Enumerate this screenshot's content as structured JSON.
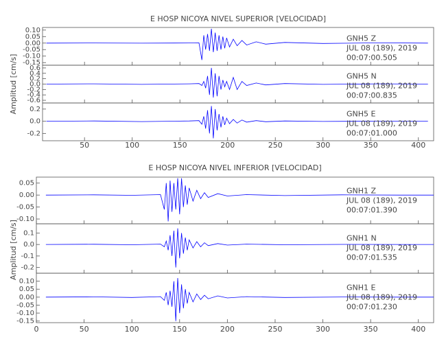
{
  "chart_data": [
    {
      "type": "line",
      "title": "E HOSP NICOYA NIVEL SUPERIOR [VELOCIDAD]",
      "y_label": "Amplitud [cm/s]",
      "color": "#0000ff",
      "xlim": [
        6,
        416
      ],
      "xticks": [
        50,
        100,
        150,
        200,
        250,
        300,
        350,
        400
      ],
      "panels": [
        {
          "station": "GNH5   Z",
          "date": "JUL 08 (189), 2019",
          "time": "00:07:00.505",
          "ylim": [
            -0.17,
            0.12
          ],
          "yticks": [
            {
              "value": -0.15,
              "label": "-0.15"
            },
            {
              "value": -0.1,
              "label": "-0.10"
            },
            {
              "value": -0.05,
              "label": "-0.05"
            },
            {
              "value": 0,
              "label": "0.00"
            },
            {
              "value": 0.05,
              "label": "0.05"
            },
            {
              "value": 0.1,
              "label": "0.10"
            }
          ],
          "x": [
            10,
            60,
            110,
            160,
            170,
            173,
            175,
            177,
            179,
            181,
            183,
            185,
            187,
            189,
            191,
            193,
            195,
            197,
            199,
            202,
            206,
            210,
            215,
            220,
            230,
            240,
            260,
            300,
            360,
            410
          ],
          "values": [
            0,
            0.001,
            -0.001,
            0.001,
            0.002,
            -0.13,
            0.06,
            -0.05,
            0.07,
            -0.06,
            0.11,
            -0.07,
            0.08,
            -0.06,
            0.06,
            -0.05,
            0.05,
            -0.04,
            0.04,
            -0.03,
            0.03,
            -0.02,
            0.02,
            -0.015,
            0.01,
            -0.008,
            0.005,
            -0.003,
            0.002,
            0
          ]
        },
        {
          "station": "GNH5   N",
          "date": "JUL 08 (189), 2019",
          "time": "00:07:00.835",
          "ylim": [
            -0.7,
            0.7
          ],
          "yticks": [
            -0.6,
            -0.4,
            -0.2,
            {
              "value": 0,
              "label": "0.0"
            },
            0.2,
            0.4,
            0.6
          ],
          "x": [
            10,
            60,
            110,
            160,
            170,
            173,
            175,
            177,
            179,
            181,
            183,
            185,
            187,
            189,
            191,
            193,
            195,
            197,
            199,
            202,
            206,
            210,
            215,
            220,
            230,
            240,
            260,
            300,
            360,
            410
          ],
          "values": [
            0,
            0.01,
            -0.01,
            0.01,
            0.02,
            -0.05,
            0.1,
            -0.15,
            0.3,
            -0.4,
            0.6,
            -0.5,
            0.4,
            -0.45,
            0.3,
            -0.2,
            0.15,
            -0.1,
            0.1,
            -0.2,
            0.25,
            -0.2,
            0.1,
            -0.05,
            0.04,
            -0.03,
            0.02,
            -0.01,
            0.01,
            0
          ]
        },
        {
          "station": "GNH5   E",
          "date": "JUL 08 (189), 2019",
          "time": "00:07:01.000",
          "ylim": [
            -0.32,
            0.3
          ],
          "yticks": [
            -0.2,
            {
              "value": 0,
              "label": "0.0"
            },
            0.2
          ],
          "x": [
            10,
            60,
            110,
            160,
            170,
            173,
            175,
            177,
            179,
            181,
            183,
            185,
            187,
            189,
            191,
            193,
            195,
            197,
            199,
            202,
            206,
            210,
            215,
            220,
            230,
            240,
            260,
            300,
            360,
            410
          ],
          "values": [
            0,
            0.005,
            -0.005,
            0.005,
            0.01,
            -0.05,
            0.08,
            -0.12,
            0.18,
            -0.2,
            0.25,
            -0.28,
            0.2,
            -0.15,
            0.12,
            -0.1,
            0.08,
            -0.06,
            0.05,
            -0.04,
            0.03,
            -0.03,
            0.02,
            -0.015,
            0.01,
            -0.008,
            0.005,
            -0.003,
            0.002,
            0
          ]
        }
      ]
    },
    {
      "type": "line",
      "title": "E HOSP NICOYA NIVEL INFERIOR [VELOCIDAD]",
      "y_label": "Amplitud [cm/s]",
      "color": "#0000ff",
      "xlim": [
        0,
        416
      ],
      "xticks": [
        0,
        50,
        100,
        150,
        200,
        250,
        300,
        350,
        400
      ],
      "panels": [
        {
          "station": "GNH1   Z",
          "date": "JUL 08 (189), 2019",
          "time": "00:07:01.390",
          "ylim": [
            -0.12,
            0.075
          ],
          "yticks": [
            {
              "value": -0.1,
              "label": "-0.10"
            },
            {
              "value": -0.05,
              "label": "-0.05"
            },
            {
              "value": 0,
              "label": "0.00"
            },
            {
              "value": 0.05,
              "label": "0.05"
            }
          ],
          "x": [
            10,
            60,
            100,
            130,
            134,
            136,
            138,
            140,
            142,
            144,
            146,
            148,
            150,
            152,
            154,
            156,
            158,
            160,
            164,
            168,
            172,
            176,
            180,
            190,
            200,
            220,
            260,
            320,
            380,
            416
          ],
          "values": [
            0,
            0.001,
            -0.001,
            0.002,
            -0.06,
            0.05,
            -0.11,
            0.06,
            -0.07,
            0.05,
            -0.06,
            0.07,
            -0.08,
            0.07,
            -0.05,
            0.04,
            -0.04,
            0.03,
            -0.025,
            0.02,
            -0.015,
            0.01,
            -0.01,
            0.006,
            -0.004,
            0.002,
            -0.002,
            0.001,
            0,
            0
          ]
        },
        {
          "station": "GNH1   N",
          "date": "JUL 08 (189), 2019",
          "time": "00:07:01.535",
          "ylim": [
            -0.25,
            0.18
          ],
          "yticks": [
            -0.2,
            -0.1,
            {
              "value": 0,
              "label": "0.0"
            },
            0.1
          ],
          "x": [
            10,
            60,
            100,
            130,
            134,
            136,
            138,
            140,
            142,
            144,
            146,
            148,
            150,
            152,
            154,
            156,
            158,
            160,
            164,
            168,
            172,
            176,
            180,
            190,
            200,
            220,
            260,
            320,
            380,
            416
          ],
          "values": [
            0,
            0.002,
            -0.002,
            0.003,
            -0.02,
            0.03,
            -0.05,
            0.08,
            -0.1,
            0.12,
            -0.2,
            0.14,
            -0.12,
            0.1,
            -0.08,
            0.06,
            -0.05,
            0.04,
            -0.03,
            0.025,
            -0.02,
            0.015,
            -0.01,
            0.008,
            -0.005,
            0.003,
            -0.002,
            0.001,
            0,
            0
          ]
        },
        {
          "station": "GNH1   E",
          "date": "JUL 08 (189), 2019",
          "time": "00:07:01.230",
          "ylim": [
            -0.16,
            0.15
          ],
          "yticks": [
            {
              "value": -0.15,
              "label": "-0.15"
            },
            {
              "value": -0.1,
              "label": "-0.10"
            },
            {
              "value": -0.05,
              "label": "-0.05"
            },
            {
              "value": 0,
              "label": "0.00"
            },
            {
              "value": 0.05,
              "label": "0.05"
            },
            {
              "value": 0.1,
              "label": "0.10"
            }
          ],
          "x": [
            10,
            60,
            100,
            130,
            134,
            136,
            138,
            140,
            142,
            144,
            146,
            148,
            150,
            152,
            154,
            156,
            158,
            160,
            164,
            168,
            172,
            176,
            180,
            190,
            200,
            220,
            260,
            320,
            380,
            416
          ],
          "values": [
            0,
            0.002,
            -0.002,
            0.003,
            -0.02,
            0.03,
            -0.05,
            0.04,
            -0.06,
            0.1,
            -0.15,
            0.12,
            -0.1,
            0.08,
            -0.07,
            0.05,
            -0.04,
            0.03,
            -0.03,
            0.02,
            -0.015,
            0.012,
            -0.01,
            0.008,
            -0.005,
            0.003,
            -0.002,
            0.001,
            0,
            0
          ]
        }
      ]
    }
  ]
}
